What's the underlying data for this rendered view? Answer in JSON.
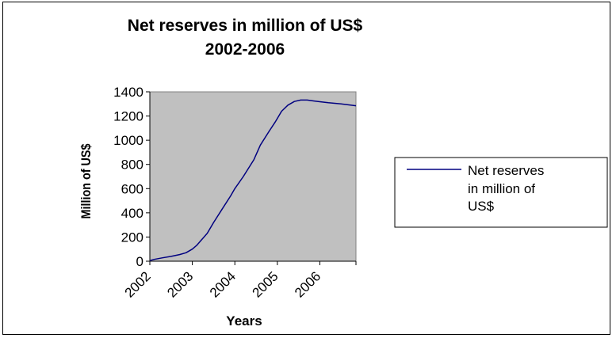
{
  "chart_data": {
    "type": "line",
    "title": [
      "Net reserves in million of US$",
      "2002-2006"
    ],
    "xlabel": "Years",
    "ylabel": "Million of US$",
    "x_ticks": [
      "2002",
      "2003",
      "2004",
      "2005",
      "2006"
    ],
    "xlim": [
      2002,
      2006.85
    ],
    "ylim": [
      0,
      1400
    ],
    "y_ticks": [
      "0",
      "200",
      "400",
      "600",
      "800",
      "1000",
      "1200",
      "1400"
    ],
    "grid": false,
    "legend": {
      "position": "right",
      "lines": [
        "Net reserves",
        "in million of",
        "US$"
      ]
    },
    "colors": {
      "plot_area": "#c0c0c0",
      "line": "#000080",
      "background": "#ffffff"
    },
    "series": [
      {
        "name": "Net reserves in million of US$",
        "x": [
          2002.0,
          2002.1,
          2002.3,
          2002.5,
          2002.7,
          2002.85,
          2003.0,
          2003.1,
          2003.2,
          2003.35,
          2003.5,
          2003.7,
          2003.9,
          2004.0,
          2004.2,
          2004.45,
          2004.6,
          2004.8,
          2004.95,
          2005.1,
          2005.25,
          2005.4,
          2005.55,
          2005.7,
          2005.85,
          2006.0,
          2006.2,
          2006.5,
          2006.85
        ],
        "y": [
          5,
          15,
          28,
          40,
          55,
          70,
          100,
          130,
          170,
          230,
          320,
          430,
          540,
          600,
          700,
          840,
          960,
          1070,
          1150,
          1240,
          1290,
          1320,
          1332,
          1332,
          1325,
          1318,
          1310,
          1300,
          1285
        ]
      }
    ]
  }
}
